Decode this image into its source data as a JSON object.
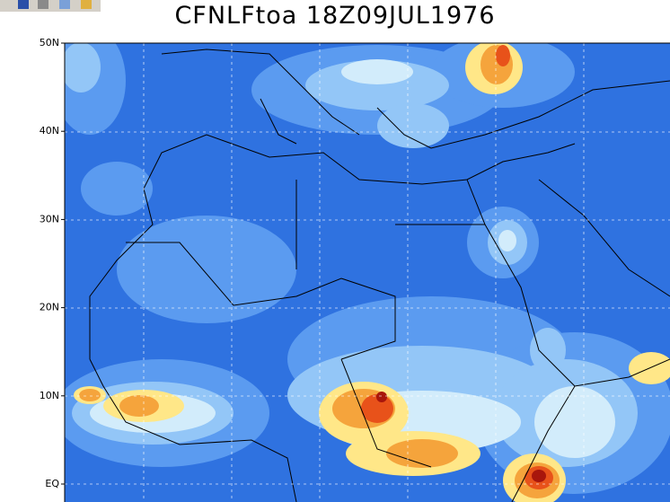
{
  "map": {
    "title": "CFNLFtoa 18Z09JUL1976",
    "lat_labels": [
      "50N",
      "40N",
      "30N",
      "20N",
      "10N",
      "EQ"
    ]
  }
}
